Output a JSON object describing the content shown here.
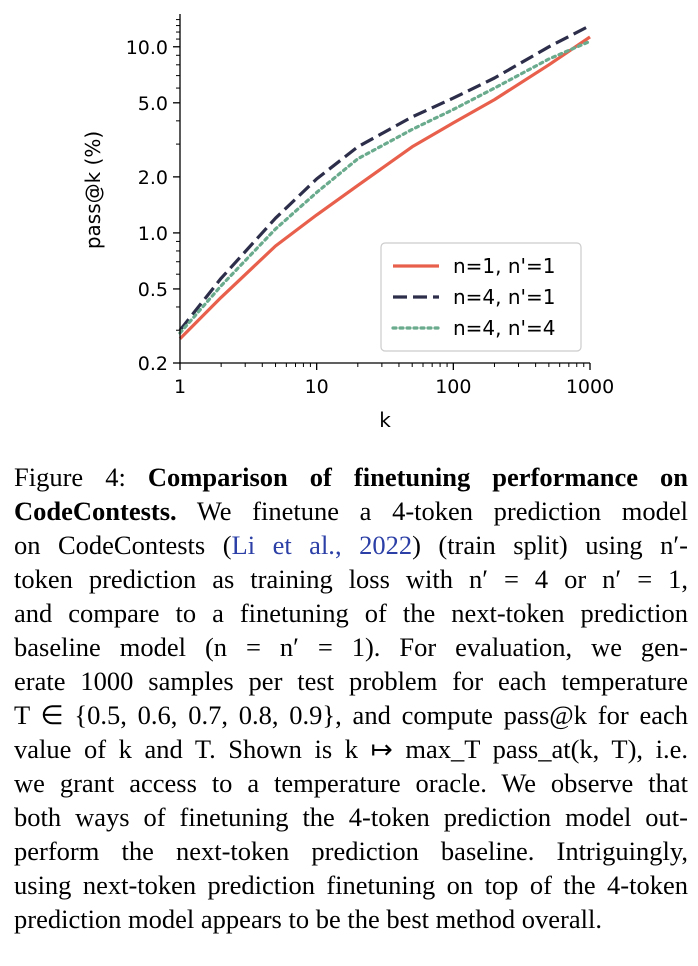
{
  "chart_data": {
    "type": "line",
    "xlabel": "k",
    "ylabel": "pass@k (%)",
    "xscale": "log",
    "yscale": "log",
    "xlim": [
      1,
      1000
    ],
    "ylim": [
      0.2,
      15
    ],
    "x_ticks": [
      {
        "value": 1,
        "label": "1"
      },
      {
        "value": 10,
        "label": "10"
      },
      {
        "value": 100,
        "label": "100"
      },
      {
        "value": 1000,
        "label": "1000"
      }
    ],
    "y_ticks": [
      {
        "value": 0.2,
        "label": "0.2"
      },
      {
        "value": 0.5,
        "label": "0.5"
      },
      {
        "value": 1.0,
        "label": "1.0"
      },
      {
        "value": 2.0,
        "label": "2.0"
      },
      {
        "value": 5.0,
        "label": "5.0"
      },
      {
        "value": 10.0,
        "label": "10.0"
      }
    ],
    "legend_position": "lower-right",
    "series": [
      {
        "name": "n=1, n'=1",
        "color": "#e8604c",
        "dash": "solid",
        "points": [
          [
            1,
            0.27
          ],
          [
            2,
            0.45
          ],
          [
            5,
            0.85
          ],
          [
            10,
            1.25
          ],
          [
            20,
            1.8
          ],
          [
            50,
            2.9
          ],
          [
            100,
            3.9
          ],
          [
            200,
            5.2
          ],
          [
            500,
            8.0
          ],
          [
            1000,
            11.3
          ]
        ]
      },
      {
        "name": "n=4, n'=1",
        "color": "#2c2e4a",
        "dash": "dashed",
        "points": [
          [
            1,
            0.3
          ],
          [
            2,
            0.57
          ],
          [
            5,
            1.2
          ],
          [
            10,
            1.95
          ],
          [
            20,
            2.9
          ],
          [
            50,
            4.2
          ],
          [
            100,
            5.3
          ],
          [
            200,
            6.8
          ],
          [
            500,
            10.0
          ],
          [
            1000,
            13.0
          ]
        ]
      },
      {
        "name": "n=4, n'=4",
        "color": "#6aab8e",
        "dash": "dotted",
        "points": [
          [
            1,
            0.29
          ],
          [
            2,
            0.52
          ],
          [
            5,
            1.05
          ],
          [
            10,
            1.65
          ],
          [
            20,
            2.5
          ],
          [
            50,
            3.6
          ],
          [
            100,
            4.6
          ],
          [
            200,
            6.0
          ],
          [
            500,
            8.6
          ],
          [
            1000,
            10.7
          ]
        ]
      }
    ]
  },
  "caption": {
    "label": "Figure 4:",
    "title_1": "Comparison of finetuning performance on",
    "title_2": "CodeContests.",
    "line2_rest": "We finetune a 4-token prediction model",
    "line3_a": "on CodeContests (",
    "line3_cite_author": "Li et al.",
    "line3_cite_sep": ", ",
    "line3_cite_year": "2022",
    "line3_b": ") (train split) using n′-",
    "line4": "token prediction as training loss with n′ = 4 or n′ = 1,",
    "line5": "and compare to a finetuning of the next-token prediction",
    "line6": "baseline model (n = n′ = 1).  For evaluation, we gen-",
    "line7": "erate 1000 samples per test problem for each temperature",
    "line8": "T ∈ {0.5, 0.6, 0.7, 0.8, 0.9}, and compute pass@k for each",
    "line9": "value of k and T. Shown is k ↦ max_T pass_at(k, T), i.e.",
    "line10": "we grant access to a temperature oracle. We observe that",
    "line11": "both ways of finetuning the 4-token prediction model out-",
    "line12": "perform the next-token prediction baseline.  Intriguingly,",
    "line13": "using next-token prediction finetuning on top of the 4-token",
    "line14": "prediction model appears to be the best method overall."
  }
}
